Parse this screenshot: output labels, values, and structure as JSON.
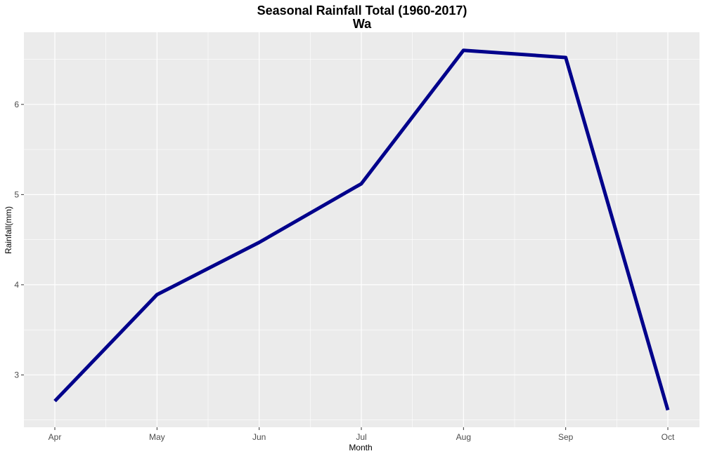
{
  "colors": {
    "panel_background": "#ebebeb",
    "grid_line": "#ffffff",
    "series_line": "#00008b",
    "tick_label": "#4d4d4d",
    "tick_mark": "#333333"
  },
  "chart_data": {
    "type": "line",
    "title": "Seasonal Rainfall Total (1960-2017)",
    "subtitle": "Wa",
    "xlabel": "Month",
    "ylabel": "Rainfall(mm)",
    "categories": [
      "Apr",
      "May",
      "Jun",
      "Jul",
      "Aug",
      "Sep",
      "Oct"
    ],
    "series": [
      {
        "values": [
          2.71,
          3.89,
          4.47,
          5.12,
          6.6,
          6.52,
          2.61
        ]
      }
    ],
    "yticks": [
      3,
      4,
      5,
      6
    ],
    "ylim": [
      2.42,
      6.8
    ],
    "grid": true,
    "legend": "none"
  }
}
